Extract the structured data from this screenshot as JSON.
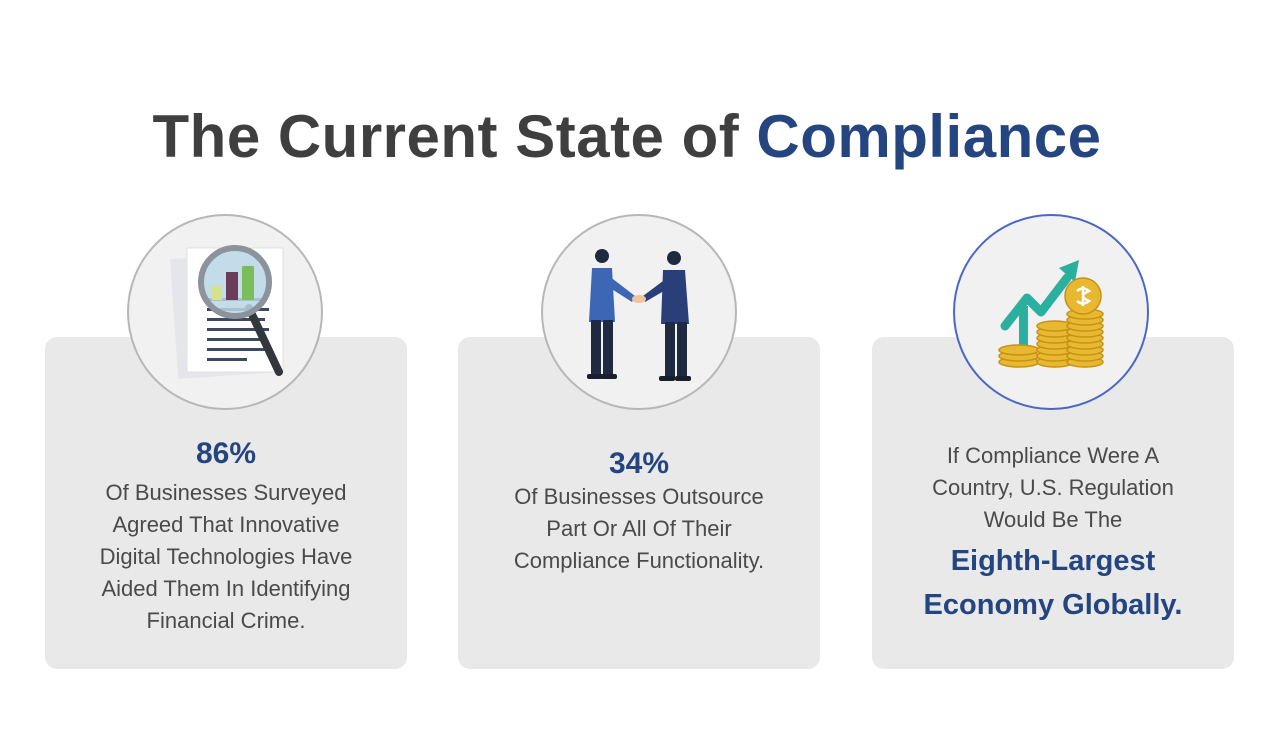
{
  "title": {
    "prefix": "The Current State of ",
    "accent": "Compliance"
  },
  "cards": [
    {
      "icon": "magnifier-report-icon",
      "stat": "86%",
      "lines": [
        "Of Businesses Surveyed",
        "Agreed That Innovative",
        "Digital Technologies Have",
        "Aided Them In Identifying",
        "Financial Crime."
      ]
    },
    {
      "icon": "handshake-icon",
      "stat": "34%",
      "lines": [
        "Of Businesses Outsource",
        "Part Or All Of Their",
        "Compliance Functionality."
      ]
    },
    {
      "icon": "coins-growth-icon",
      "lines": [
        "If Compliance Were A",
        "Country, U.S. Regulation",
        "Would Be The"
      ],
      "highlight": [
        "Eighth-Largest",
        "Economy Globally."
      ]
    }
  ],
  "colors": {
    "accent": "#24457f",
    "text": "#4a4a4a",
    "card_bg": "#e9e9e9"
  }
}
